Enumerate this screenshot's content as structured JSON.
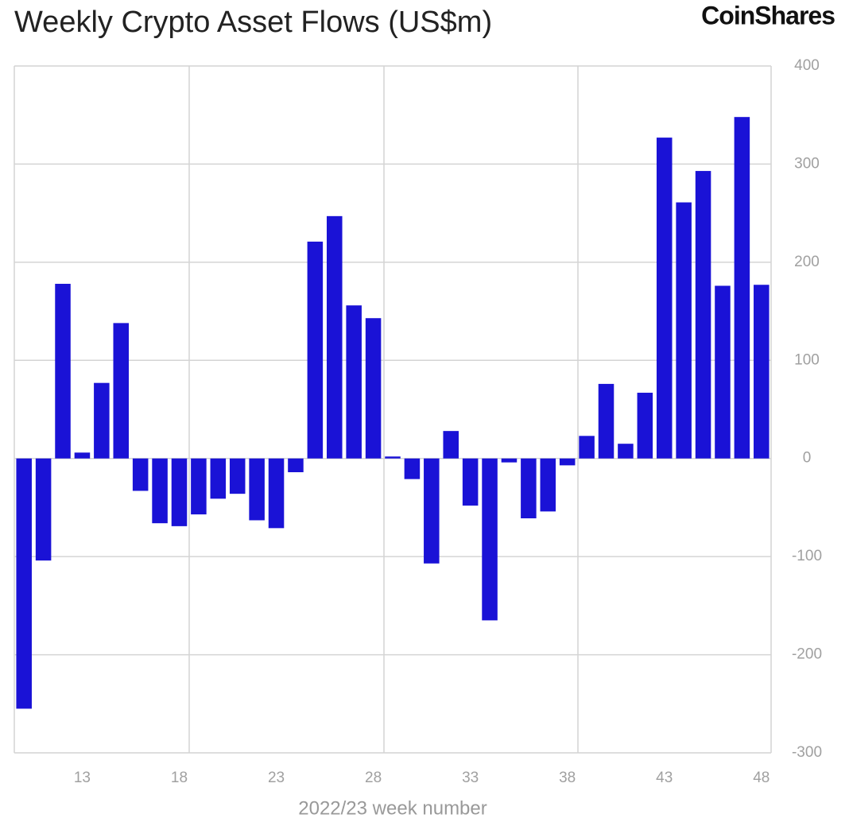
{
  "chart_data": {
    "type": "bar",
    "title": "Weekly Crypto Asset Flows (US$m)",
    "brand": "CoinShares",
    "x_label": "2022/23 week number",
    "x": [
      10,
      11,
      12,
      13,
      14,
      15,
      16,
      17,
      18,
      19,
      20,
      21,
      22,
      23,
      24,
      25,
      26,
      27,
      28,
      29,
      30,
      31,
      32,
      33,
      34,
      35,
      36,
      37,
      38,
      39,
      40,
      41,
      42,
      43,
      44,
      45,
      46,
      47,
      48
    ],
    "values": [
      -255,
      -104,
      178,
      6,
      77,
      138,
      -33,
      -66,
      -69,
      -57,
      -41,
      -36,
      -63,
      -71,
      -14,
      221,
      247,
      156,
      143,
      2,
      -21,
      -107,
      28,
      -48,
      -165,
      -4,
      -61,
      -54,
      -7,
      23,
      76,
      15,
      67,
      327,
      261,
      293,
      176,
      348,
      177
    ],
    "color": "#1a12d6",
    "xlim": [
      9.5,
      48.5
    ],
    "xticks": [
      13,
      18,
      23,
      28,
      33,
      38,
      43,
      48
    ],
    "ylim": [
      -300,
      400
    ],
    "yticks": [
      -300,
      -200,
      -100,
      0,
      100,
      200,
      300,
      400
    ],
    "grid": true
  }
}
